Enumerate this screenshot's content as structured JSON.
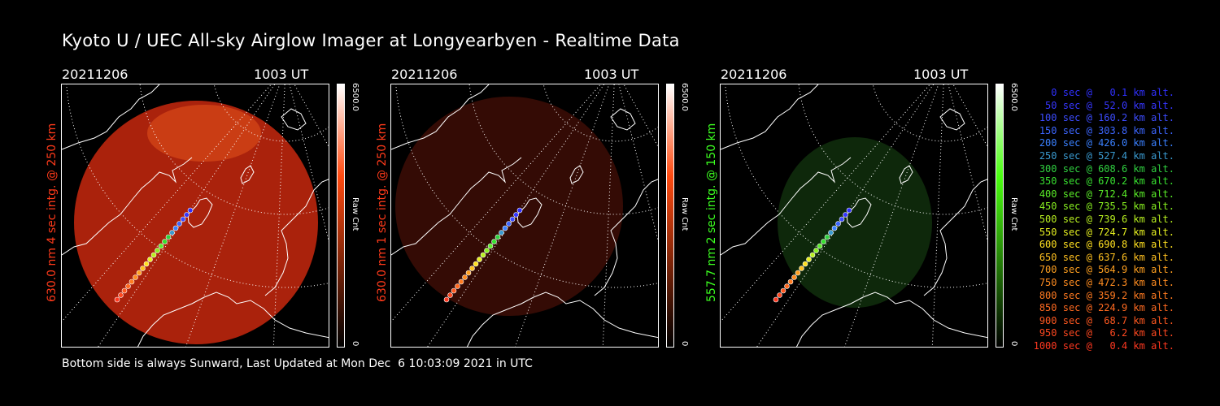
{
  "title": "Kyoto U / UEC All-sky Airglow Imager at Longyearbyen - Realtime Data",
  "footer": "Bottom side is always Sunward, Last Updated at Mon Dec  6 10:03:09 2021 in UTC",
  "panels": [
    {
      "date": "20211206",
      "ut": "1003 UT",
      "side_label": "630.0 nm 4 sec intg. @ 250 km",
      "label_color": "#ff3a1a",
      "cbar_max": "6500.0",
      "cbar_min": "0",
      "cbar_title": "Raw Cnt",
      "glow_color": "#c8280e",
      "glow_opacity": 0.85,
      "cbar_top_color": "#ff4a10"
    },
    {
      "date": "20211206",
      "ut": "1003 UT",
      "side_label": "630.0 nm 1 sec intg. @ 250 km",
      "label_color": "#ff3a1a",
      "cbar_max": "6500.0",
      "cbar_min": "0",
      "cbar_title": "Raw Cnt",
      "glow_color": "#3a0c06",
      "glow_opacity": 0.9,
      "cbar_top_color": "#ff4a10"
    },
    {
      "date": "20211206",
      "ut": "1003 UT",
      "side_label": "557.7 nm 2 sec intg. @ 150 km",
      "label_color": "#3cff20",
      "cbar_max": "6500.0",
      "cbar_min": "0",
      "cbar_title": "Raw Cnt",
      "glow_color": "#0f2a0c",
      "glow_opacity": 0.95,
      "cbar_top_color": "#4aff10"
    }
  ],
  "legend": [
    {
      "text": "  0 sec @   0.1 km alt.",
      "color": "#3030ff"
    },
    {
      "text": " 50 sec @  52.0 km alt.",
      "color": "#3636ff"
    },
    {
      "text": "100 sec @ 160.2 km alt.",
      "color": "#3c4cff"
    },
    {
      "text": "150 sec @ 303.8 km alt.",
      "color": "#3c66ff"
    },
    {
      "text": "200 sec @ 426.0 km alt.",
      "color": "#3a80ff"
    },
    {
      "text": "250 sec @ 527.4 km alt.",
      "color": "#3a9ad0"
    },
    {
      "text": "300 sec @ 608.6 km alt.",
      "color": "#30d040"
    },
    {
      "text": "350 sec @ 670.2 km alt.",
      "color": "#38e030"
    },
    {
      "text": "400 sec @ 712.4 km alt.",
      "color": "#5aec28"
    },
    {
      "text": "450 sec @ 735.5 km alt.",
      "color": "#88f020"
    },
    {
      "text": "500 sec @ 739.6 km alt.",
      "color": "#b8f020"
    },
    {
      "text": "550 sec @ 724.7 km alt.",
      "color": "#e6f020"
    },
    {
      "text": "600 sec @ 690.8 km alt.",
      "color": "#ffe020"
    },
    {
      "text": "650 sec @ 637.6 km alt.",
      "color": "#ffc020"
    },
    {
      "text": "700 sec @ 564.9 km alt.",
      "color": "#ffa020"
    },
    {
      "text": "750 sec @ 472.3 km alt.",
      "color": "#ff8c20"
    },
    {
      "text": "800 sec @ 359.2 km alt.",
      "color": "#ff7a20"
    },
    {
      "text": "850 sec @ 224.9 km alt.",
      "color": "#ff6a20"
    },
    {
      "text": "900 sec @  68.7 km alt.",
      "color": "#ff5820"
    },
    {
      "text": "950 sec @   6.2 km alt.",
      "color": "#ff4820"
    },
    {
      "text": "1000 sec @   0.4 km alt.",
      "color": "#ff3820"
    }
  ],
  "colors": {
    "background": "#000000",
    "text": "#ffffff",
    "grid": "#ffffff"
  }
}
